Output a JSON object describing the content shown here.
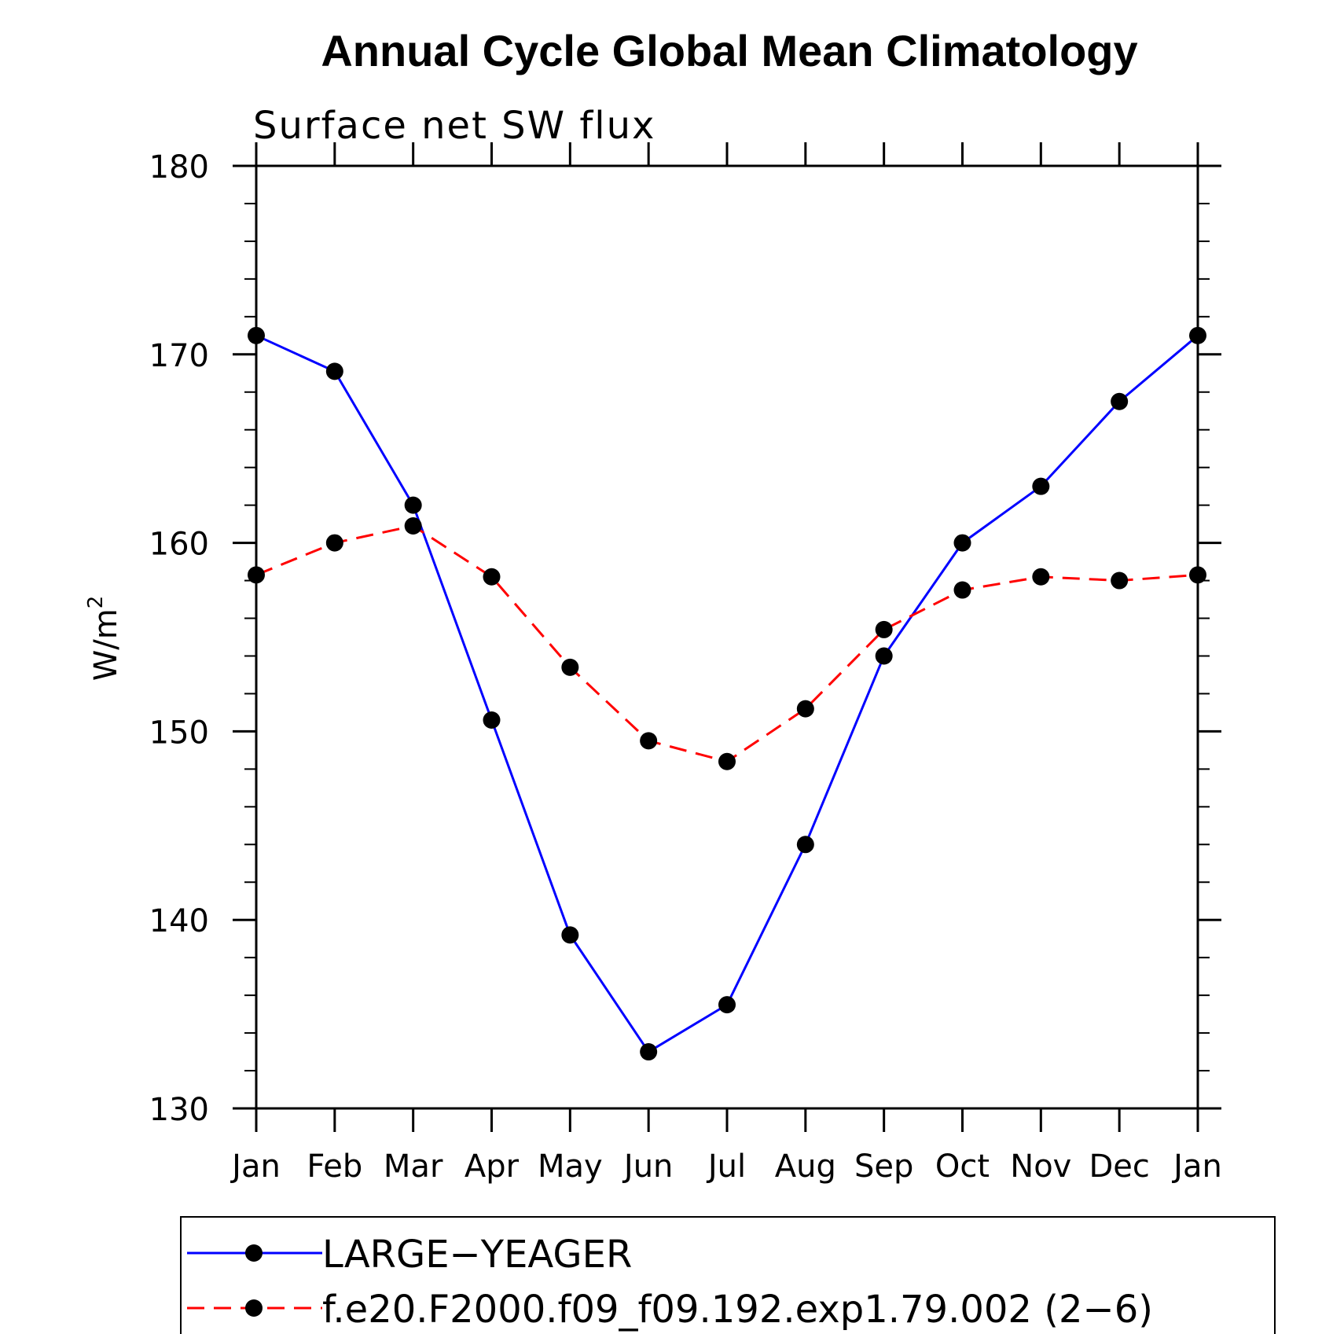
{
  "chart_data": {
    "type": "line",
    "title": "Annual Cycle Global Mean Climatology",
    "subtitle": "Surface net SW flux",
    "ylabel": "W/m",
    "ylabel_sup": "2",
    "xlabel": "",
    "ylim": [
      130,
      180
    ],
    "yticks": [
      "130",
      "140",
      "150",
      "160",
      "170",
      "180"
    ],
    "categories": [
      "Jan",
      "Feb",
      "Mar",
      "Apr",
      "May",
      "Jun",
      "Jul",
      "Aug",
      "Sep",
      "Oct",
      "Nov",
      "Dec",
      "Jan"
    ],
    "series": [
      {
        "name": "LARGE−YEAGER",
        "color": "#0000ff",
        "dash": "solid",
        "values": [
          171.0,
          169.1,
          162.0,
          150.6,
          139.2,
          133.0,
          135.5,
          144.0,
          154.0,
          160.0,
          163.0,
          167.5,
          171.0
        ]
      },
      {
        "name": "f.e20.F2000.f09_f09.192.exp1.79.002 (2−6)",
        "color": "#ff0000",
        "dash": "dashed",
        "values": [
          158.3,
          160.0,
          160.9,
          158.2,
          153.4,
          149.5,
          148.4,
          151.2,
          155.4,
          157.5,
          158.2,
          158.0,
          158.3
        ]
      }
    ],
    "legend": "bottom"
  }
}
